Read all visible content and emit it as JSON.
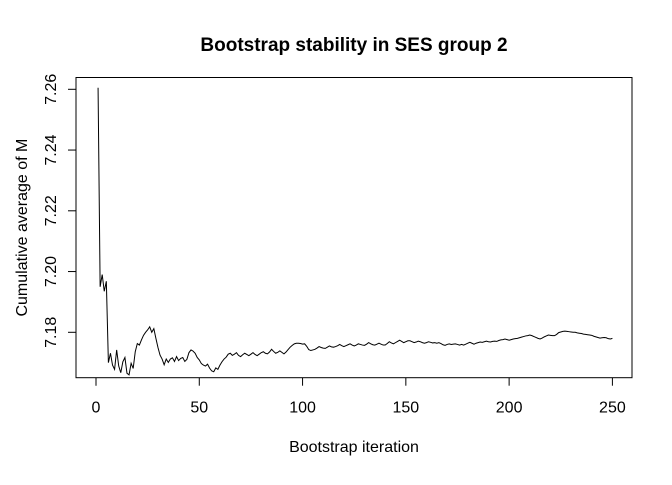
{
  "chart_data": {
    "type": "line",
    "title": "Bootstrap stability in SES group 2",
    "xlabel": "Bootstrap iteration",
    "ylabel": "Cumulative average of M",
    "legend": null,
    "grid": false,
    "background": "#ffffff",
    "line_color": "#000000",
    "frame_color": "#000000",
    "x_start": 1,
    "x_step": 1,
    "xlim": [
      -9.7,
      259.5
    ],
    "ylim": [
      7.1651,
      7.2639
    ],
    "x_ticks": [
      0,
      50,
      100,
      150,
      200,
      250
    ],
    "x_tick_labels": [
      "0",
      "50",
      "100",
      "150",
      "200",
      "250"
    ],
    "y_ticks": [
      7.18,
      7.2,
      7.22,
      7.24,
      7.26
    ],
    "y_tick_labels": [
      "7.18",
      "7.20",
      "7.22",
      "7.24",
      "7.26"
    ],
    "values": [
      7.2605,
      7.195,
      7.199,
      7.1935,
      7.1968,
      7.17,
      7.1731,
      7.1692,
      7.1678,
      7.1742,
      7.1689,
      7.1667,
      7.1703,
      7.1717,
      7.1665,
      7.166,
      7.1698,
      7.1681,
      7.1736,
      7.1763,
      7.1758,
      7.1775,
      7.179,
      7.18,
      7.1808,
      7.1818,
      7.18,
      7.1812,
      7.178,
      7.175,
      7.1725,
      7.1712,
      7.1693,
      7.1712,
      7.1701,
      7.1712,
      7.1716,
      7.1704,
      7.172,
      7.1707,
      7.1714,
      7.1717,
      7.1704,
      7.1711,
      7.1733,
      7.1742,
      7.1738,
      7.1731,
      7.1717,
      7.1709,
      7.1697,
      7.1692,
      7.1689,
      7.1695,
      7.1682,
      7.1673,
      7.167,
      7.1683,
      7.1678,
      7.1692,
      7.1703,
      7.1712,
      7.1718,
      7.1728,
      7.1731,
      7.1724,
      7.1728,
      7.1733,
      7.1724,
      7.172,
      7.1726,
      7.1731,
      7.1727,
      7.1723,
      7.1728,
      7.1733,
      7.1727,
      7.1723,
      7.1728,
      7.1733,
      7.1736,
      7.1731,
      7.1729,
      7.1735,
      7.1744,
      7.1737,
      7.1731,
      7.1734,
      7.1739,
      7.1734,
      7.1729,
      7.1735,
      7.1743,
      7.1751,
      7.1757,
      7.1762,
      7.1764,
      7.1764,
      7.1763,
      7.1761,
      7.1762,
      7.1754,
      7.1743,
      7.174,
      7.1742,
      7.1744,
      7.1748,
      7.1753,
      7.175,
      7.1748,
      7.1747,
      7.1751,
      7.1755,
      7.1752,
      7.1751,
      7.1753,
      7.1756,
      7.176,
      7.1756,
      7.1753,
      7.1756,
      7.1759,
      7.1762,
      7.1758,
      7.1755,
      7.1758,
      7.1762,
      7.176,
      7.1758,
      7.1757,
      7.1761,
      7.1766,
      7.1762,
      7.1759,
      7.1758,
      7.1761,
      7.1764,
      7.1761,
      7.1758,
      7.1758,
      7.1763,
      7.1769,
      7.1765,
      7.1762,
      7.1766,
      7.177,
      7.1774,
      7.177,
      7.1766,
      7.1769,
      7.1772,
      7.1772,
      7.1769,
      7.1766,
      7.1768,
      7.1771,
      7.1769,
      7.1766,
      7.1764,
      7.1766,
      7.1769,
      7.1767,
      7.1765,
      7.1766,
      7.1764,
      7.1766,
      7.1763,
      7.1759,
      7.1757,
      7.176,
      7.1762,
      7.176,
      7.1761,
      7.1762,
      7.176,
      7.1758,
      7.176,
      7.1758,
      7.1761,
      7.1764,
      7.1767,
      7.1764,
      7.1761,
      7.1764,
      7.1766,
      7.1768,
      7.1767,
      7.1769,
      7.1771,
      7.1769,
      7.1768,
      7.177,
      7.1771,
      7.177,
      7.1773,
      7.1775,
      7.1776,
      7.1778,
      7.1776,
      7.1774,
      7.1776,
      7.1778,
      7.1779,
      7.178,
      7.1782,
      7.1784,
      7.1786,
      7.1788,
      7.1789,
      7.1791,
      7.1789,
      7.1786,
      7.1783,
      7.178,
      7.1778,
      7.1781,
      7.1785,
      7.1788,
      7.1791,
      7.179,
      7.1789,
      7.1789,
      7.1793,
      7.1799,
      7.1801,
      7.1803,
      7.1804,
      7.1803,
      7.1802,
      7.1801,
      7.18,
      7.18,
      7.1798,
      7.1797,
      7.1796,
      7.1794,
      7.1793,
      7.1792,
      7.1791,
      7.179,
      7.1787,
      7.1785,
      7.1783,
      7.1781,
      7.1782,
      7.1783,
      7.1782,
      7.1779,
      7.1778,
      7.178
    ]
  }
}
